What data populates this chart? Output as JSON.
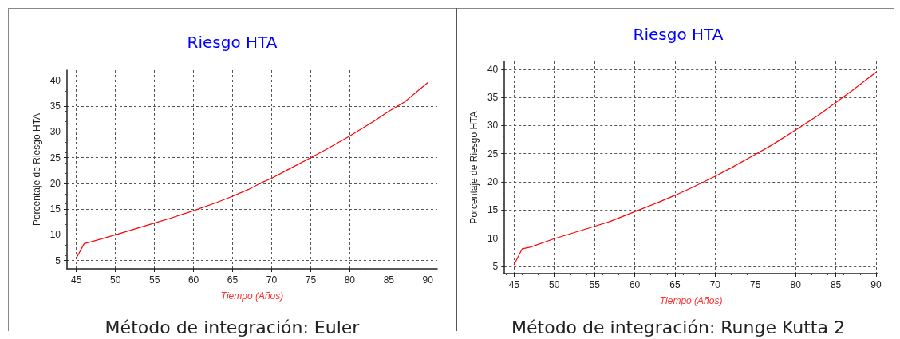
{
  "chart_data": [
    {
      "type": "line",
      "title": "Riesgo HTA",
      "xlabel": "Tiempo (Años)",
      "ylabel": "Porcentaje de Riesgo HTA",
      "annotations": [
        "Método de integración: Euler"
      ],
      "grid": true,
      "marker": "none",
      "line_style": "solid",
      "xlim": [
        43.8,
        91.2
      ],
      "xticks": [
        45,
        50,
        55,
        60,
        65,
        70,
        75,
        80,
        85,
        90
      ],
      "ylim": [
        3.4,
        42
      ],
      "yticks": [
        5,
        10,
        15,
        20,
        25,
        30,
        35,
        40
      ],
      "series": [
        {
          "color": "#ff0000",
          "x": [
            45,
            46,
            47,
            50,
            55,
            57,
            60,
            63,
            65,
            67,
            68.5,
            70,
            72,
            75,
            77,
            80,
            83,
            85,
            87,
            90
          ],
          "values": [
            5.5,
            8.3,
            8.7,
            10,
            12.3,
            13.2,
            14.7,
            16.3,
            17.5,
            18.8,
            20,
            21,
            22.6,
            25,
            26.6,
            29.2,
            32,
            34,
            35.8,
            39.6
          ]
        }
      ]
    },
    {
      "type": "line",
      "title": "Riesgo HTA",
      "xlabel": "Tiempo (Años)",
      "ylabel": "Porcentaje de Riesgo HTA",
      "annotations": [
        "Método de integración: Runge Kutta 2"
      ],
      "grid": true,
      "marker": "none",
      "line_style": "solid",
      "xlim": [
        43.8,
        90.2
      ],
      "xticks": [
        45,
        50,
        55,
        60,
        65,
        70,
        75,
        80,
        85,
        90
      ],
      "ylim": [
        3.7,
        41.4
      ],
      "yticks": [
        5,
        10,
        15,
        20,
        25,
        30,
        35,
        40
      ],
      "series": [
        {
          "color": "#ff0000",
          "x": [
            45,
            46,
            47,
            50,
            55,
            57,
            60,
            63,
            65,
            67,
            70,
            72,
            75,
            77,
            80,
            83,
            85,
            87,
            90
          ],
          "values": [
            5.3,
            8.1,
            8.4,
            9.9,
            12.1,
            13,
            14.7,
            16.4,
            17.6,
            18.9,
            21,
            22.5,
            24.9,
            26.5,
            29.2,
            32,
            34.1,
            36.2,
            39.5
          ]
        }
      ]
    }
  ]
}
